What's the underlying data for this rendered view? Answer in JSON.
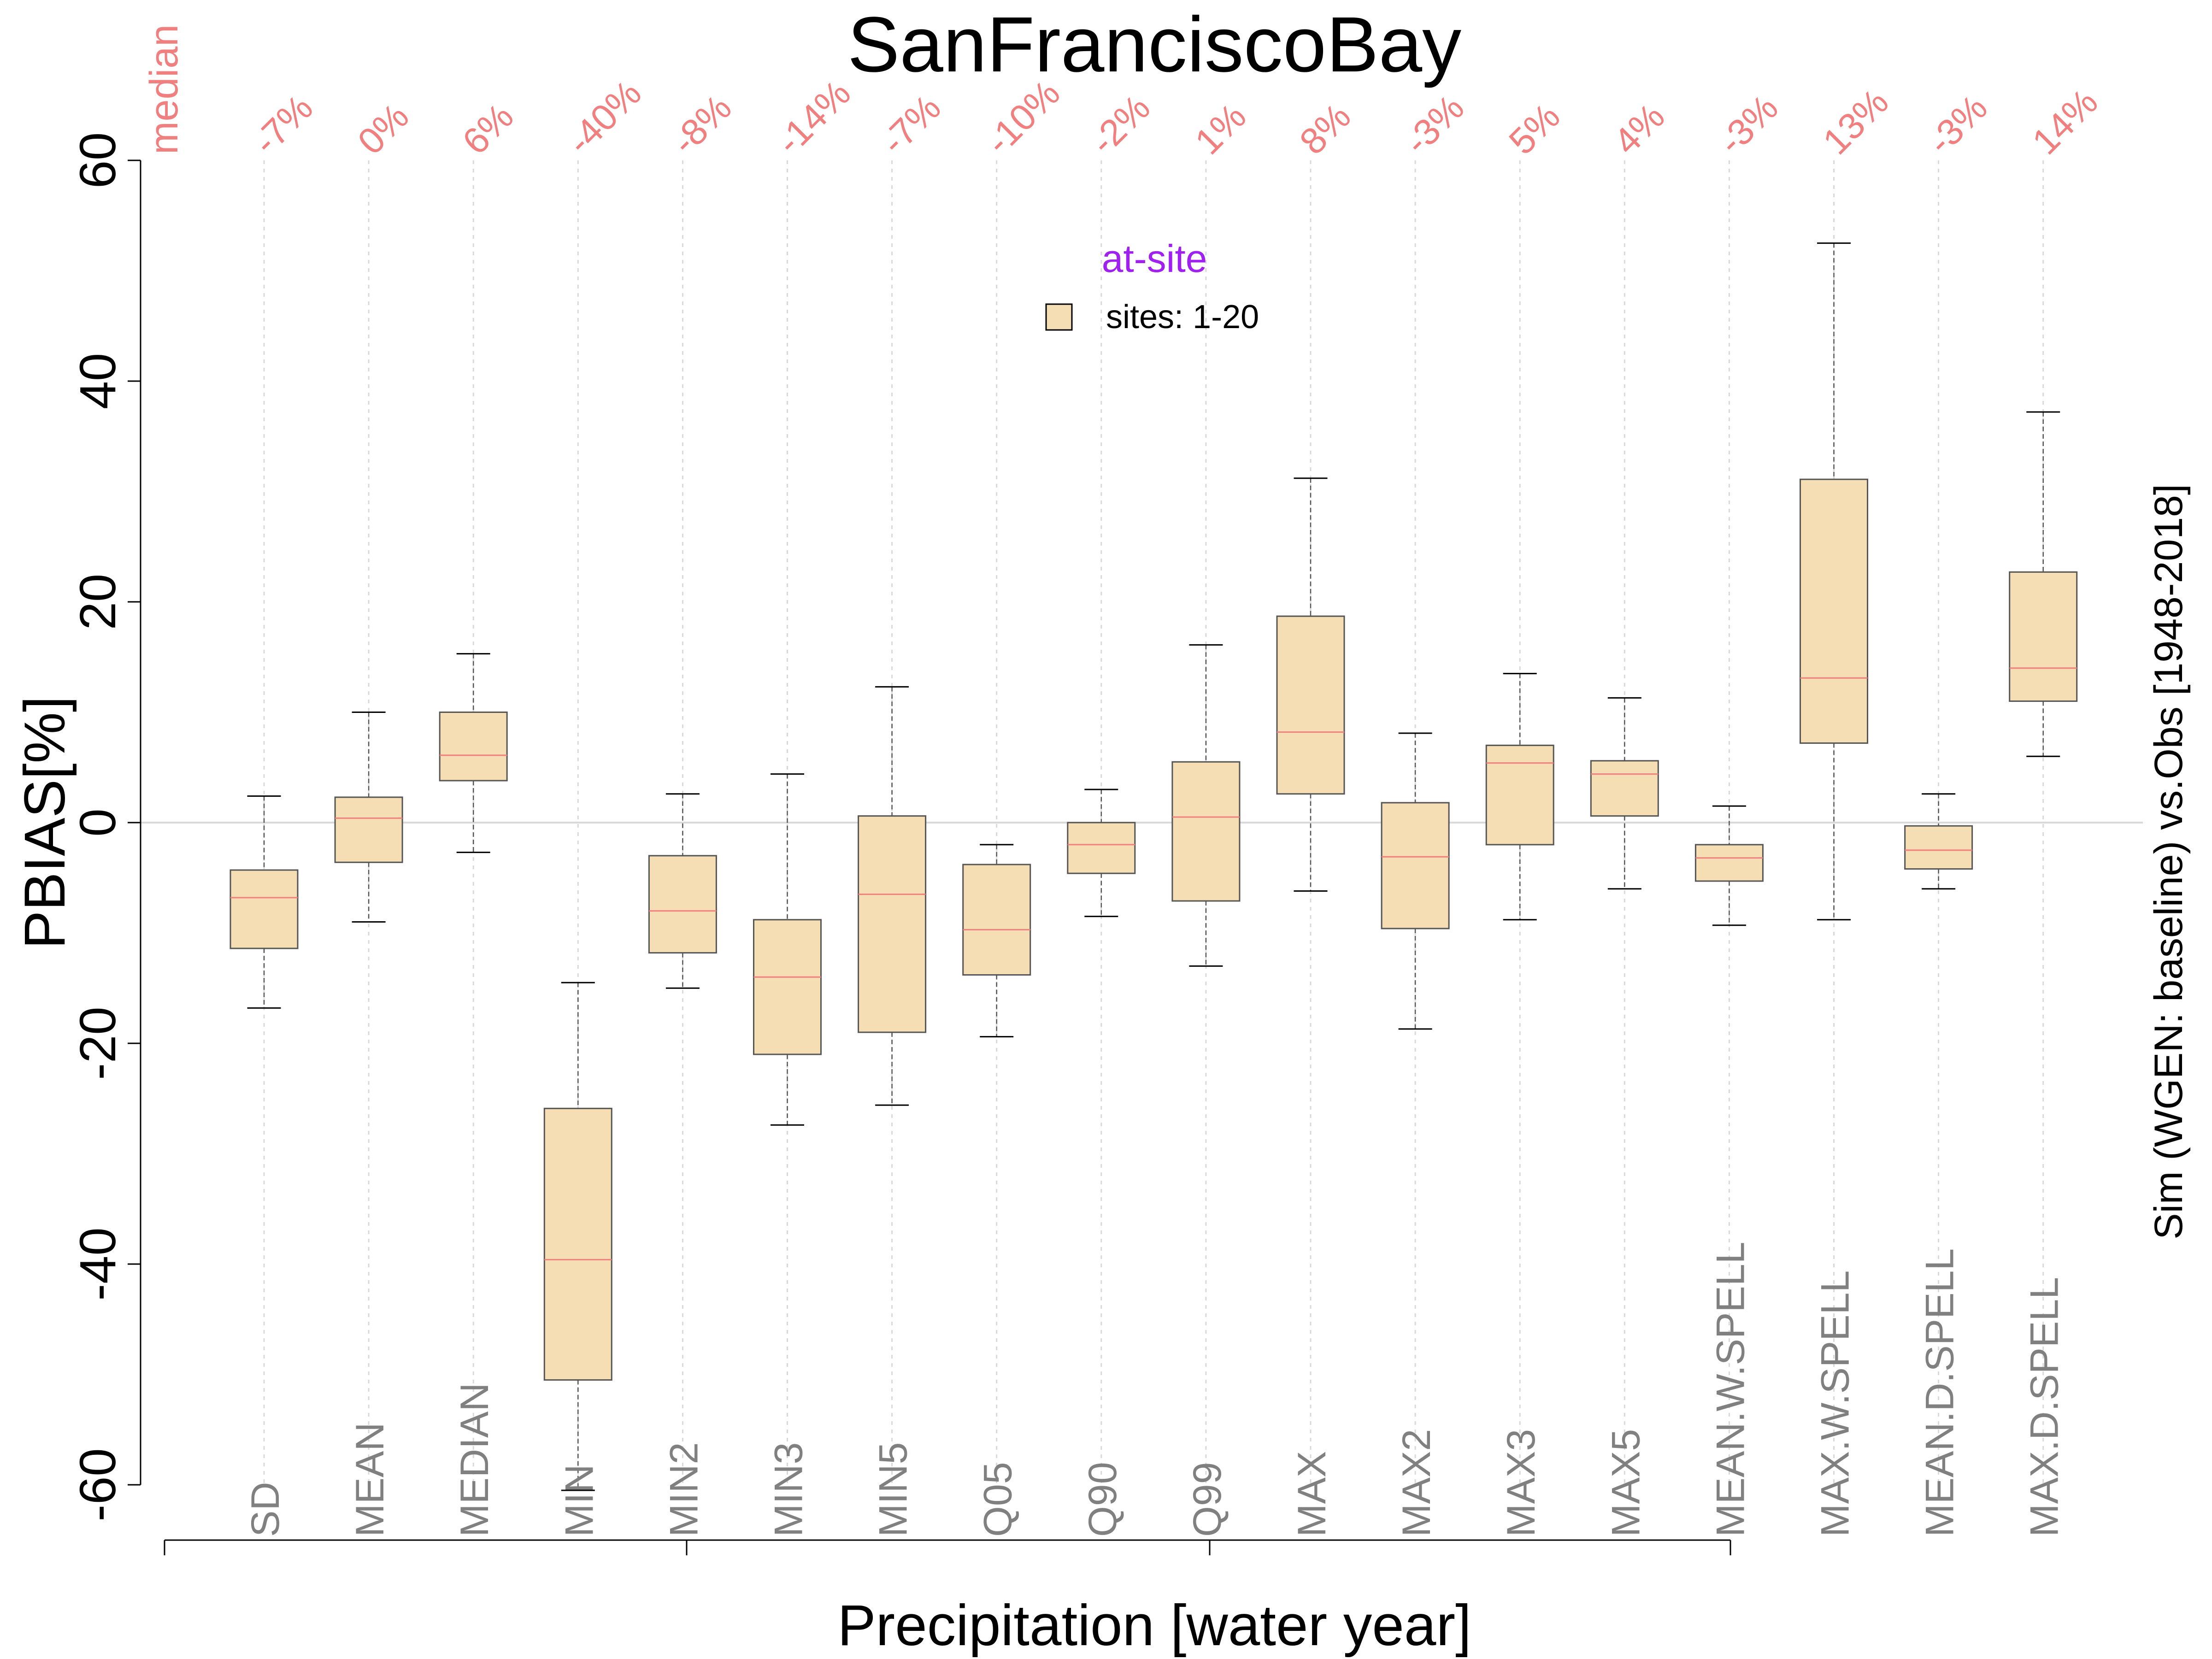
{
  "chart_data": {
    "type": "box",
    "title": "SanFranciscoBay",
    "xlabel": "Precipitation [water year]",
    "ylabel": "PBIAS[%]",
    "right_label": "Sim (WGEN: baseline) vs.Obs [1948-2018]",
    "ylim": [
      -60,
      60
    ],
    "yticks": [
      "60",
      "40",
      "20",
      "0",
      "-20",
      "-40",
      "-60"
    ],
    "ytick_values": [
      60,
      40,
      20,
      0,
      -20,
      -40,
      -60
    ],
    "median_header": "median",
    "legend": {
      "title": "at-site",
      "label": "sites: 1-20",
      "placement": "top-center"
    },
    "colors": {
      "box_fill": "#f5deb3",
      "box_border": "#555555",
      "median_line": "#f08080",
      "annotation": "#f08080",
      "legend_title": "#a020f0",
      "category_label": "#808080",
      "grid": "#d9d9d9"
    },
    "categories": [
      "SD",
      "MEAN",
      "MEDIAN",
      "MIN",
      "MIN2",
      "MIN3",
      "MIN5",
      "Q05",
      "Q90",
      "Q99",
      "MAX",
      "MAX2",
      "MAX3",
      "MAX5",
      "MEAN.W.SPELL",
      "MAX.W.SPELL",
      "MEAN.D.SPELL",
      "MAX.D.SPELL"
    ],
    "median_labels": [
      "-7%",
      "0%",
      "6%",
      "-40%",
      "-8%",
      "-14%",
      "-7%",
      "-10%",
      "-2%",
      "1%",
      "8%",
      "-3%",
      "5%",
      "4%",
      "-3%",
      "13%",
      "-3%",
      "14%"
    ],
    "boxes": [
      {
        "min": -16.8,
        "q1": -11.4,
        "median": -6.8,
        "q3": -4.3,
        "max": 2.4
      },
      {
        "min": -9.0,
        "q1": -3.6,
        "median": 0.4,
        "q3": 2.3,
        "max": 10.0
      },
      {
        "min": -2.7,
        "q1": 3.8,
        "median": 6.1,
        "q3": 10.0,
        "max": 15.3
      },
      {
        "min": -60.5,
        "q1": -50.5,
        "median": -39.6,
        "q3": -25.9,
        "max": -14.5
      },
      {
        "min": -15.0,
        "q1": -11.8,
        "median": -8.0,
        "q3": -3.0,
        "max": 2.6
      },
      {
        "min": -27.4,
        "q1": -21.0,
        "median": -14.0,
        "q3": -8.8,
        "max": 4.4
      },
      {
        "min": -25.6,
        "q1": -19.0,
        "median": -6.5,
        "q3": 0.6,
        "max": 12.3
      },
      {
        "min": -19.4,
        "q1": -13.8,
        "median": -9.7,
        "q3": -3.8,
        "max": -2.0
      },
      {
        "min": -8.5,
        "q1": -4.6,
        "median": -2.0,
        "q3": 0.0,
        "max": 3.0
      },
      {
        "min": -13.0,
        "q1": -7.1,
        "median": 0.5,
        "q3": 5.5,
        "max": 16.1
      },
      {
        "min": -6.2,
        "q1": 2.6,
        "median": 8.2,
        "q3": 18.7,
        "max": 31.2
      },
      {
        "min": -18.7,
        "q1": -9.6,
        "median": -3.1,
        "q3": 1.8,
        "max": 8.1
      },
      {
        "min": -8.8,
        "q1": -2.0,
        "median": 5.4,
        "q3": 7.0,
        "max": 13.5
      },
      {
        "min": -6.0,
        "q1": 0.6,
        "median": 4.4,
        "q3": 5.6,
        "max": 11.3
      },
      {
        "min": -9.3,
        "q1": -5.3,
        "median": -3.2,
        "q3": -2.0,
        "max": 1.5
      },
      {
        "min": -8.8,
        "q1": 7.2,
        "median": 13.1,
        "q3": 31.1,
        "max": 52.5
      },
      {
        "min": -6.0,
        "q1": -4.2,
        "median": -2.5,
        "q3": -0.3,
        "max": 2.6
      },
      {
        "min": 6.0,
        "q1": 11.0,
        "median": 14.0,
        "q3": 22.7,
        "max": 37.2
      }
    ]
  }
}
